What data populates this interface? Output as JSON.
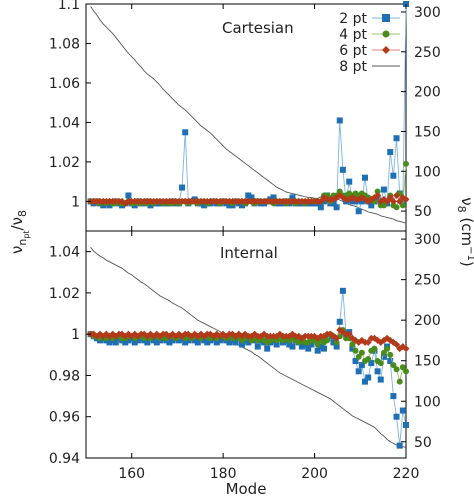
{
  "chart_data": [
    {
      "type": "line",
      "panel": "top",
      "title": "Cartesian",
      "xlim": [
        150,
        220
      ],
      "ylim": [
        0.985,
        1.1
      ],
      "y2lim": [
        25,
        310
      ],
      "x_ticks": [
        "160",
        "180",
        "200",
        "220"
      ],
      "y_ticks": [
        "1",
        "1.02",
        "1.04",
        "1.06",
        "1.08",
        "1.1"
      ],
      "y_tick_values": [
        1.0,
        1.02,
        1.04,
        1.06,
        1.08,
        1.1
      ],
      "y2_ticks": [
        "50",
        "100",
        "150",
        "200",
        "250",
        "300"
      ],
      "y2_tick_values": [
        50,
        100,
        150,
        200,
        250,
        300
      ],
      "legend_position": "top-right",
      "x_start": 151,
      "series": [
        {
          "name": "2 pt",
          "color": "#1f6fb4",
          "marker": "square",
          "values": [
            1.0,
            0.999,
            1.0,
            0.999,
            0.998,
            0.999,
            0.998,
            0.999,
            1.0,
            0.999,
            0.998,
            0.999,
            1.003,
            0.999,
            0.998,
            1.0,
            0.999,
            0.999,
            1.0,
            0.998,
            0.999,
            0.999,
            0.999,
            0.999,
            0.999,
            0.999,
            1.0,
            0.999,
            0.999,
            1.007,
            1.035,
            0.999,
            1.0,
            1.001,
            0.999,
            0.999,
            0.998,
            0.999,
            0.999,
            1.0,
            0.999,
            0.999,
            1.0,
            0.999,
            0.998,
            0.998,
            1.0,
            0.999,
            0.998,
            0.999,
            1.003,
            1.002,
            0.999,
            1.0,
            0.999,
            0.999,
            1.0,
            1.001,
            1.002,
            0.999,
            0.999,
            0.999,
            1.0,
            0.999,
            1.002,
            0.999,
            0.999,
            0.999,
            0.999,
            0.999,
            0.999,
            0.999,
            0.999,
            0.997,
            1.0,
            1.003,
            0.999,
            0.999,
            0.997,
            1.041,
            1.016,
            1.0,
            1.01,
            1.0,
            1.0,
            0.995,
            1.0,
            1.012,
            1.0,
            0.998,
            1.0,
            1.002,
            1.0,
            1.006,
            0.999,
            1.025,
            1.013,
            1.032,
            1.004,
            0.999,
            1.1
          ]
        },
        {
          "name": "4 pt",
          "color": "#4a8c1c",
          "marker": "circle",
          "values": [
            1.0,
            1.0,
            1.0,
            0.999,
            1.0,
            0.999,
            1.0,
            0.999,
            0.999,
            1.0,
            0.999,
            0.999,
            1.0,
            0.999,
            0.999,
            1.0,
            0.999,
            1.0,
            0.999,
            1.0,
            0.999,
            1.0,
            1.0,
            0.999,
            1.0,
            0.999,
            0.999,
            1.0,
            0.999,
            1.0,
            1.0,
            0.999,
            1.0,
            1.0,
            0.999,
            1.0,
            1.0,
            0.999,
            1.0,
            1.0,
            1.0,
            0.999,
            1.0,
            1.0,
            1.0,
            0.999,
            1.0,
            1.0,
            1.0,
            0.999,
            1.0,
            1.0,
            0.999,
            1.0,
            1.0,
            1.0,
            1.0,
            1.0,
            0.999,
            1.0,
            1.0,
            1.0,
            0.999,
            1.0,
            1.0,
            0.999,
            1.0,
            1.0,
            0.999,
            1.0,
            1.0,
            1.0,
            1.0,
            1.0,
            1.003,
            1.003,
            1.0,
            1.003,
            1.003,
            1.005,
            1.003,
            1.003,
            1.004,
            1.003,
            1.004,
            1.003,
            1.004,
            1.003,
            1.002,
            1.001,
            1.0,
            1.005,
            0.998,
            0.998,
            1.0,
            1.003,
            0.998,
            0.997,
            1.004,
            0.998,
            1.019
          ]
        },
        {
          "name": "6 pt",
          "color": "#b23a1a",
          "marker": "diamond",
          "values": [
            1.0,
            1.0,
            1.0,
            1.0,
            1.0,
            1.0,
            1.0,
            1.0,
            1.0,
            1.0,
            1.0,
            0.999,
            1.0,
            1.0,
            1.0,
            1.0,
            1.0,
            1.0,
            1.0,
            1.0,
            1.0,
            1.0,
            1.0,
            1.0,
            1.0,
            1.0,
            1.0,
            1.0,
            1.0,
            1.0,
            1.0,
            1.0,
            1.0,
            1.0,
            1.0,
            1.0,
            1.0,
            1.0,
            1.0,
            1.0,
            1.0,
            1.0,
            1.0,
            1.0,
            1.0,
            1.0,
            1.0,
            1.0,
            1.0,
            1.0,
            1.0,
            1.0,
            1.0,
            1.0,
            1.0,
            1.0,
            1.0,
            1.0,
            1.0,
            1.0,
            1.0,
            1.0,
            1.0,
            1.0,
            1.0,
            1.0,
            1.0,
            1.0,
            1.0,
            1.0,
            1.0,
            1.0,
            1.0,
            1.0,
            1.002,
            1.001,
            1.001,
            1.001,
            1.002,
            1.003,
            1.002,
            1.001,
            1.001,
            1.002,
            1.001,
            1.001,
            1.002,
            1.001,
            1.0,
            1.001,
            1.002,
            1.003,
            1.0,
            1.001,
            1.0,
            1.002,
            1.0,
            1.003,
            1.0,
            1.002,
            1.001
          ]
        },
        {
          "name": "8 pt",
          "color": "#555555",
          "marker": "none",
          "axis": "right",
          "values": [
            307,
            301,
            296,
            290,
            285,
            281,
            277,
            273,
            268,
            263,
            258,
            253,
            248,
            244,
            240,
            235,
            231,
            226,
            222,
            219,
            216,
            212,
            208,
            203,
            199,
            195,
            191,
            187,
            183,
            180,
            177,
            173,
            169,
            165,
            161,
            157,
            154,
            151,
            148,
            144,
            140,
            136,
            132,
            128,
            125,
            122,
            119,
            116,
            113,
            110,
            107,
            104,
            101,
            98,
            95,
            92,
            89,
            86,
            83,
            80,
            78,
            76,
            74,
            73,
            72,
            71,
            70,
            69,
            68,
            67,
            67,
            66,
            66,
            68,
            69,
            70,
            68,
            66,
            65,
            64,
            62,
            60,
            58,
            57,
            56,
            54,
            52,
            51,
            49,
            48,
            47,
            46,
            44,
            43,
            42,
            41,
            40,
            38,
            37,
            36,
            35
          ]
        }
      ]
    },
    {
      "type": "line",
      "panel": "bottom",
      "title": "Internal",
      "xlim": [
        150,
        220
      ],
      "ylim": [
        0.94,
        1.05
      ],
      "y2lim": [
        30,
        310
      ],
      "x_ticks": [
        "160",
        "180",
        "200",
        "220"
      ],
      "y_ticks": [
        "0.94",
        "0.96",
        "0.98",
        "1",
        "1.02",
        "1.04"
      ],
      "y_tick_values": [
        0.94,
        0.96,
        0.98,
        1.0,
        1.02,
        1.04
      ],
      "y2_ticks": [
        "50",
        "100",
        "150",
        "200",
        "250",
        "300"
      ],
      "y2_tick_values": [
        50,
        100,
        150,
        200,
        250,
        300
      ],
      "x_start": 151,
      "series": [
        {
          "name": "2 pt",
          "color": "#1f6fb4",
          "marker": "square",
          "values": [
            1.0,
            0.999,
            0.998,
            0.997,
            0.998,
            0.997,
            0.996,
            0.997,
            0.996,
            0.998,
            0.997,
            0.996,
            0.997,
            0.998,
            0.996,
            0.997,
            0.998,
            0.997,
            0.996,
            0.998,
            0.997,
            0.996,
            0.997,
            0.998,
            0.997,
            0.996,
            0.997,
            0.998,
            0.997,
            0.998,
            0.996,
            0.997,
            0.998,
            0.997,
            0.996,
            0.998,
            0.997,
            0.996,
            0.997,
            0.998,
            0.996,
            0.997,
            0.998,
            0.997,
            0.996,
            0.997,
            0.996,
            0.998,
            0.995,
            0.997,
            0.996,
            0.998,
            0.997,
            0.994,
            0.997,
            0.996,
            0.993,
            0.996,
            0.997,
            0.995,
            0.998,
            0.996,
            0.997,
            0.995,
            0.994,
            0.997,
            0.996,
            0.994,
            0.995,
            0.993,
            0.995,
            0.997,
            0.992,
            0.994,
            0.993,
            0.998,
            0.999,
            0.996,
            0.994,
            1.006,
            1.021,
            1.0,
            1.001,
            0.993,
            0.987,
            0.982,
            0.985,
            0.977,
            0.979,
            0.986,
            0.992,
            0.982,
            0.978,
            0.989,
            0.994,
            0.987,
            0.97,
            0.96,
            0.946,
            0.963,
            0.956
          ]
        },
        {
          "name": "4 pt",
          "color": "#4a8c1c",
          "marker": "circle",
          "values": [
            1.0,
            0.999,
            0.999,
            0.998,
            0.999,
            0.998,
            0.999,
            0.998,
            0.999,
            0.999,
            0.998,
            0.998,
            0.999,
            0.999,
            0.998,
            0.999,
            0.999,
            0.998,
            0.999,
            0.998,
            0.999,
            0.999,
            0.998,
            0.999,
            0.998,
            0.999,
            0.999,
            0.998,
            0.999,
            0.999,
            0.998,
            0.999,
            0.998,
            0.999,
            0.999,
            0.998,
            0.999,
            0.999,
            0.998,
            0.999,
            0.998,
            0.999,
            0.999,
            0.998,
            0.999,
            0.998,
            0.999,
            0.998,
            0.997,
            0.998,
            0.999,
            0.997,
            0.998,
            0.997,
            0.998,
            0.997,
            0.996,
            0.997,
            0.998,
            0.997,
            0.998,
            0.997,
            0.998,
            0.997,
            0.998,
            0.997,
            0.996,
            0.997,
            0.996,
            0.996,
            0.997,
            0.997,
            0.995,
            0.997,
            0.996,
            0.997,
            1.0,
            0.999,
            0.996,
            0.999,
            1.002,
            0.998,
            0.998,
            0.995,
            0.992,
            0.989,
            0.991,
            0.987,
            0.988,
            0.992,
            0.993,
            0.987,
            0.986,
            0.991,
            0.993,
            0.99,
            0.985,
            0.983,
            0.977,
            0.984,
            0.982
          ]
        },
        {
          "name": "6 pt",
          "color": "#b23a1a",
          "marker": "diamond",
          "values": [
            1.0,
            1.0,
            0.999,
            1.0,
            0.999,
            1.0,
            0.999,
            1.0,
            0.999,
            1.0,
            1.0,
            0.999,
            1.0,
            0.999,
            1.0,
            0.999,
            1.0,
            1.0,
            0.999,
            1.0,
            0.999,
            1.0,
            0.999,
            1.0,
            1.0,
            0.999,
            1.0,
            0.999,
            1.0,
            0.999,
            1.0,
            1.0,
            0.999,
            1.0,
            0.999,
            1.0,
            0.999,
            1.0,
            1.0,
            0.999,
            1.0,
            0.999,
            1.0,
            0.999,
            1.0,
            1.0,
            0.999,
            1.0,
            0.999,
            1.0,
            0.999,
            0.999,
            1.0,
            0.999,
            0.999,
            1.0,
            0.999,
            0.999,
            0.999,
            0.999,
            1.0,
            0.999,
            0.999,
            0.999,
            1.0,
            0.999,
            0.999,
            0.998,
            0.999,
            0.999,
            0.999,
            0.999,
            0.998,
            0.999,
            0.999,
            1.0,
            1.0,
            0.999,
            0.998,
            1.002,
            1.001,
            1.0,
            1.0,
            0.998,
            0.997,
            0.996,
            0.997,
            0.996,
            0.996,
            0.998,
            0.998,
            0.997,
            0.996,
            0.997,
            0.998,
            0.997,
            0.996,
            0.995,
            0.993,
            0.994,
            0.993
          ]
        },
        {
          "name": "8 pt",
          "color": "#555555",
          "marker": "none",
          "axis": "right",
          "values": [
            290,
            285,
            282,
            279,
            277,
            274,
            272,
            270,
            268,
            266,
            264,
            261,
            258,
            256,
            253,
            250,
            247,
            245,
            242,
            239,
            236,
            233,
            230,
            228,
            226,
            224,
            221,
            219,
            217,
            215,
            212,
            209,
            206,
            203,
            200,
            198,
            196,
            194,
            192,
            190,
            188,
            186,
            183,
            180,
            177,
            174,
            171,
            169,
            167,
            165,
            163,
            161,
            158,
            156,
            153,
            150,
            147,
            144,
            141,
            138,
            135,
            133,
            131,
            129,
            127,
            125,
            123,
            121,
            119,
            117,
            115,
            113,
            111,
            109,
            107,
            105,
            103,
            100,
            97,
            94,
            91,
            88,
            85,
            82,
            80,
            78,
            76,
            74,
            72,
            70,
            68,
            64,
            60,
            57,
            53,
            50,
            48,
            46,
            45,
            44,
            43
          ]
        }
      ]
    }
  ],
  "axes": {
    "xlabel": "Mode",
    "ylabel": "ν",
    "ylabel_sub": "n",
    "ylabel_subsub": "pt",
    "ylabel_tail": "/ν",
    "ylabel_tail_sub": "8",
    "y2label": "ν",
    "y2label_sub": "8",
    "y2label_unit": " (cm",
    "y2label_unit_sup": "−1",
    "y2label_close": ")"
  }
}
